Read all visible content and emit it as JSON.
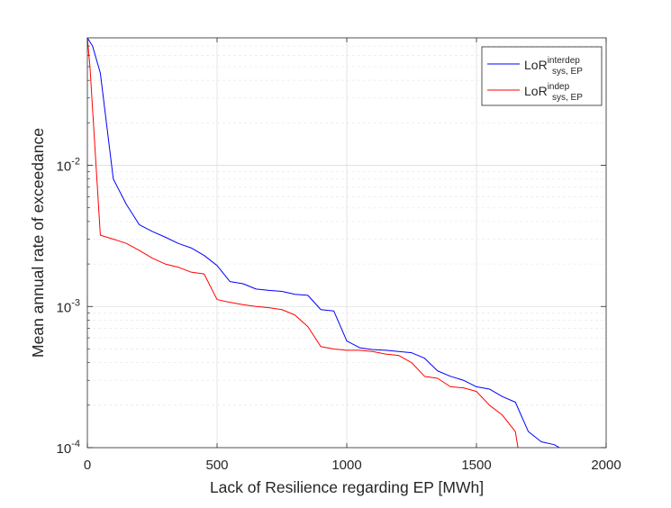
{
  "chart_data": {
    "type": "line",
    "title": "",
    "xlabel": "Lack of Resilience regarding EP [MWh]",
    "ylabel": "Mean annual rate of exceedance",
    "xlim": [
      0,
      2000
    ],
    "ylim": [
      0.0001,
      0.08
    ],
    "yscale": "log",
    "grid": true,
    "legend_position": "top-right",
    "x_ticks": [
      0,
      500,
      1000,
      1500,
      2000
    ],
    "x_tick_labels": [
      "0",
      "500",
      "1000",
      "1500",
      "2000"
    ],
    "y_ticks": [
      0.0001,
      0.001,
      0.01
    ],
    "y_tick_labels": [
      {
        "base": "10",
        "exp": "-4"
      },
      {
        "base": "10",
        "exp": "-3"
      },
      {
        "base": "10",
        "exp": "-2"
      }
    ],
    "series": [
      {
        "label_main": "LoR",
        "label_sup": "interdep",
        "label_sub": "sys, EP",
        "color": "#0000ff",
        "x": [
          0,
          20,
          50,
          100,
          150,
          200,
          250,
          300,
          350,
          400,
          450,
          500,
          550,
          600,
          650,
          700,
          750,
          800,
          850,
          900,
          950,
          1000,
          1050,
          1100,
          1150,
          1200,
          1250,
          1300,
          1350,
          1400,
          1450,
          1500,
          1550,
          1600,
          1650,
          1700,
          1750,
          1800,
          1820
        ],
        "y": [
          0.08,
          0.07,
          0.045,
          0.008,
          0.0053,
          0.0038,
          0.0034,
          0.0031,
          0.0028,
          0.0026,
          0.0023,
          0.00195,
          0.0015,
          0.00145,
          0.00133,
          0.0013,
          0.00128,
          0.00122,
          0.0012,
          0.00095,
          0.00093,
          0.00057,
          0.00051,
          0.000495,
          0.00049,
          0.00048,
          0.00047,
          0.00043,
          0.00035,
          0.00032,
          0.0003,
          0.00027,
          0.00026,
          0.00023,
          0.00021,
          0.00013,
          0.00011,
          0.000105,
          0.0001
        ]
      },
      {
        "label_main": "LoR",
        "label_sup": "indep",
        "label_sub": "sys, EP",
        "color": "#ff0000",
        "x": [
          0,
          10,
          50,
          100,
          150,
          200,
          250,
          300,
          350,
          400,
          450,
          500,
          550,
          600,
          650,
          700,
          750,
          800,
          850,
          900,
          950,
          1000,
          1050,
          1100,
          1150,
          1200,
          1250,
          1300,
          1350,
          1400,
          1450,
          1500,
          1550,
          1600,
          1650,
          1660
        ],
        "y": [
          0.08,
          0.05,
          0.0032,
          0.003,
          0.0028,
          0.0025,
          0.0022,
          0.002,
          0.0019,
          0.00175,
          0.0017,
          0.00112,
          0.00107,
          0.00103,
          0.001,
          0.00098,
          0.00095,
          0.00087,
          0.00072,
          0.00052,
          0.0005,
          0.00049,
          0.00049,
          0.00048,
          0.00046,
          0.00045,
          0.0004,
          0.00032,
          0.00031,
          0.00027,
          0.000265,
          0.00025,
          0.0002,
          0.00017,
          0.00013,
          0.0001
        ]
      }
    ]
  }
}
